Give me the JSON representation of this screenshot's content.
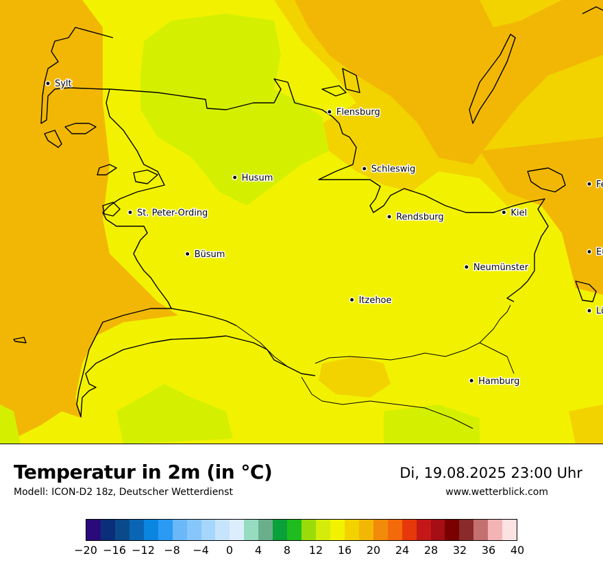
{
  "map": {
    "cities": [
      {
        "name": "Sylt",
        "lon": 8.3,
        "lat": 54.91
      },
      {
        "name": "Flensburg",
        "lon": 9.43,
        "lat": 54.78
      },
      {
        "name": "Schleswig",
        "lon": 9.57,
        "lat": 54.52
      },
      {
        "name": "Husum",
        "lon": 9.05,
        "lat": 54.48
      },
      {
        "name": "Fehmarn",
        "lon": 11.19,
        "lat": 54.45
      },
      {
        "name": "St. Peter-Ording",
        "lon": 8.63,
        "lat": 54.32
      },
      {
        "name": "Rendsburg",
        "lon": 9.67,
        "lat": 54.3
      },
      {
        "name": "Kiel",
        "lon": 10.13,
        "lat": 54.32
      },
      {
        "name": "Büsum",
        "lon": 8.86,
        "lat": 54.13
      },
      {
        "name": "Eutin",
        "lon": 10.62,
        "lat": 54.14
      },
      {
        "name": "Neumünster",
        "lon": 9.98,
        "lat": 54.07
      },
      {
        "name": "Itzehoe",
        "lon": 9.52,
        "lat": 53.92
      },
      {
        "name": "Lübeck",
        "lon": 10.69,
        "lat": 53.87
      },
      {
        "name": "Hamburg",
        "lon": 10.0,
        "lat": 53.55
      }
    ],
    "fill_colors": {
      "sea_orange": "#f2b705",
      "land_yellow": "#f2f200",
      "warm_yellow": "#f2d300",
      "cool_green": "#d4f000"
    }
  },
  "header": {
    "title": "Temperatur in 2m (in °C)",
    "model": "Modell: ICON-D2 18z, Deutscher Wetterdienst",
    "datetime": "Di, 19.08.2025 23:00 Uhr",
    "website": "www.wetterblick.com"
  },
  "legend": {
    "colors": [
      "#2a0a7a",
      "#0a2e7a",
      "#0a4a8a",
      "#0a66b4",
      "#0a86e0",
      "#2a9af2",
      "#6ab8f8",
      "#86c6fa",
      "#a6d6fb",
      "#c6e4fc",
      "#dceefd",
      "#96dcc0",
      "#6aae8c",
      "#0aa03a",
      "#1ebc1e",
      "#9adc0a",
      "#d4ec0a",
      "#f2f200",
      "#f2d300",
      "#f2b705",
      "#f28a0a",
      "#f26a0a",
      "#e6380a",
      "#c41818",
      "#a40e14",
      "#7a0000",
      "#8a2a2a",
      "#c47070",
      "#f4b4b4",
      "#fce2e2"
    ],
    "ticks": [
      "−20",
      "−16",
      "−12",
      "−8",
      "−4",
      "0",
      "4",
      "8",
      "12",
      "16",
      "20",
      "24",
      "28",
      "32",
      "36",
      "40"
    ],
    "range": [
      -20,
      40
    ]
  }
}
